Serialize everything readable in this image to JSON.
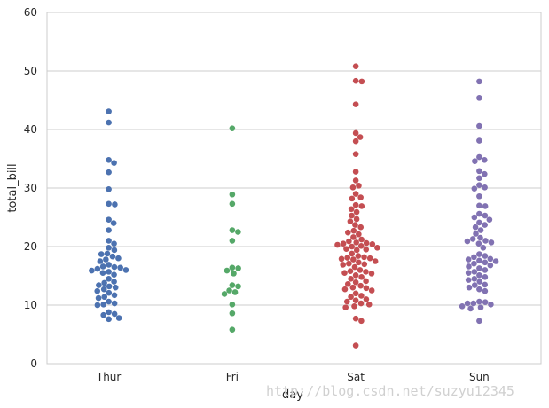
{
  "chart_data": {
    "type": "scatter",
    "xlabel": "day",
    "ylabel": "total_bill",
    "categories": [
      "Thur",
      "Fri",
      "Sat",
      "Sun"
    ],
    "ylim": [
      0,
      60
    ],
    "yticks": [
      0,
      10,
      20,
      30,
      40,
      50,
      60
    ],
    "grid": "horizontal",
    "series": [
      {
        "category": "Thur",
        "color": "#4c72b0",
        "values": [
          43.1,
          41.2,
          34.8,
          34.3,
          32.7,
          29.8,
          27.3,
          27.2,
          24.6,
          24.0,
          22.8,
          21.0,
          20.5,
          19.8,
          19.4,
          18.8,
          18.7,
          18.3,
          18.0,
          17.8,
          17.5,
          16.9,
          16.6,
          16.5,
          16.4,
          16.2,
          16.0,
          15.9,
          15.7,
          15.5,
          15.2,
          14.5,
          14.0,
          13.8,
          13.4,
          13.2,
          13.0,
          12.7,
          12.4,
          12.1,
          11.7,
          11.4,
          11.2,
          10.6,
          10.3,
          10.1,
          10.0,
          8.8,
          8.5,
          8.3,
          7.8,
          7.6
        ]
      },
      {
        "category": "Fri",
        "color": "#55a868",
        "values": [
          40.2,
          28.9,
          27.3,
          22.8,
          22.5,
          21.0,
          16.4,
          16.3,
          15.9,
          15.4,
          13.4,
          13.2,
          12.5,
          12.2,
          11.9,
          10.1,
          8.6,
          5.8
        ]
      },
      {
        "category": "Sat",
        "color": "#c44e52",
        "values": [
          50.8,
          48.3,
          48.2,
          44.3,
          39.4,
          38.7,
          38.0,
          35.8,
          32.8,
          31.3,
          30.4,
          30.1,
          29.0,
          28.4,
          28.2,
          27.1,
          26.9,
          26.4,
          25.9,
          25.3,
          24.7,
          24.3,
          23.7,
          23.3,
          22.7,
          22.4,
          22.1,
          21.6,
          21.2,
          20.9,
          20.7,
          20.6,
          20.5,
          20.4,
          20.3,
          20.1,
          20.0,
          19.8,
          19.6,
          19.5,
          19.4,
          18.8,
          18.4,
          18.2,
          18.1,
          18.0,
          17.9,
          17.8,
          17.5,
          17.3,
          17.1,
          17.0,
          16.9,
          16.5,
          16.0,
          15.8,
          15.7,
          15.5,
          15.4,
          15.1,
          14.8,
          14.5,
          14.1,
          13.9,
          13.6,
          13.3,
          13.0,
          12.9,
          12.7,
          12.5,
          12.0,
          11.6,
          11.4,
          11.0,
          10.8,
          10.6,
          10.3,
          10.1,
          9.8,
          9.6,
          7.7,
          7.3,
          3.1
        ]
      },
      {
        "category": "Sun",
        "color": "#8172b2",
        "values": [
          48.2,
          45.4,
          40.6,
          38.1,
          35.3,
          34.8,
          34.6,
          32.9,
          32.4,
          31.7,
          30.5,
          30.1,
          29.9,
          28.6,
          27.0,
          26.9,
          25.6,
          25.3,
          25.0,
          24.6,
          24.1,
          23.7,
          23.3,
          22.8,
          22.2,
          21.5,
          21.3,
          21.0,
          20.9,
          20.7,
          20.5,
          19.8,
          18.7,
          18.4,
          18.2,
          17.9,
          17.8,
          17.6,
          17.5,
          17.3,
          17.1,
          16.8,
          16.6,
          16.3,
          16.0,
          15.7,
          15.5,
          15.1,
          14.8,
          14.5,
          14.3,
          14.0,
          13.5,
          13.4,
          13.0,
          12.7,
          12.4,
          10.6,
          10.5,
          10.3,
          10.3,
          10.1,
          9.8,
          9.6,
          9.4,
          7.3
        ]
      }
    ]
  },
  "watermark": "http://blog.csdn.net/suzyu12345"
}
